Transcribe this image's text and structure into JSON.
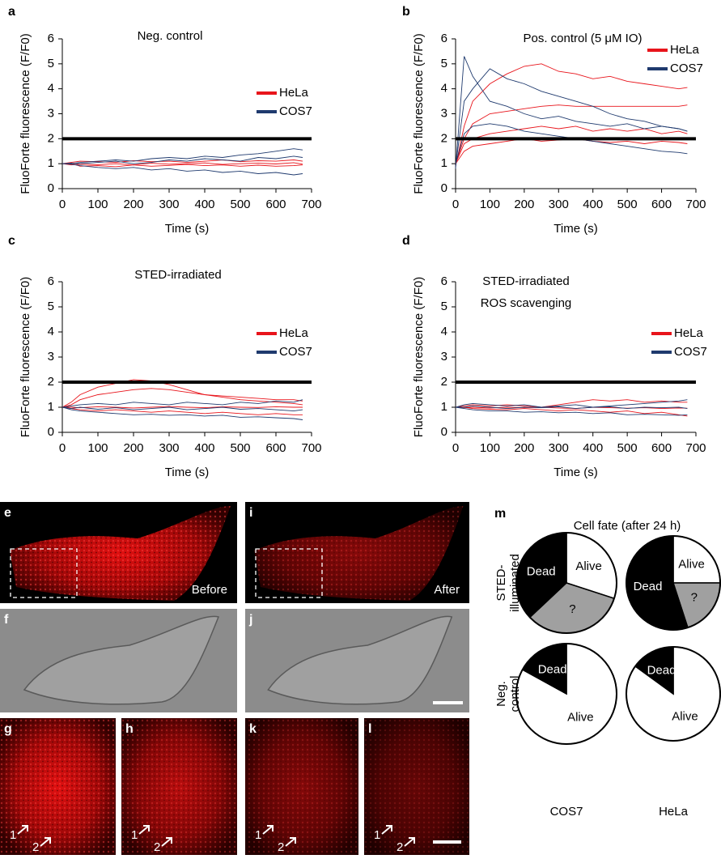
{
  "chart_data": [
    {
      "type": "line",
      "panel": "a",
      "title": "Neg. control",
      "xlabel": "Time (s)",
      "ylabel": "FluoForte fluorescence (F/F0)",
      "x": [
        0,
        25,
        50,
        100,
        150,
        200,
        250,
        300,
        350,
        400,
        450,
        500,
        550,
        600,
        650,
        675
      ],
      "xlim": [
        0,
        700
      ],
      "xticks": [
        0,
        100,
        200,
        300,
        400,
        500,
        600,
        700
      ],
      "ylim": [
        0,
        6
      ],
      "yticks": [
        0,
        1,
        2,
        3,
        4,
        5,
        6
      ],
      "threshold": 2,
      "series": [
        {
          "name": "HeLa",
          "color": "#e8141b",
          "traces": [
            [
              1,
              0.95,
              0.98,
              0.96,
              1.0,
              0.95,
              1.02,
              0.98,
              1.0,
              1.03,
              0.97,
              1.0,
              1.02,
              0.99,
              1.04,
              0.98
            ],
            [
              1,
              1.02,
              0.9,
              0.92,
              0.88,
              0.95,
              0.9,
              0.93,
              0.97,
              0.92,
              0.95,
              0.9,
              0.94,
              0.9,
              0.92,
              0.95
            ],
            [
              1,
              1.05,
              1.1,
              1.08,
              1.05,
              1.12,
              1.08,
              1.1,
              1.05,
              1.1,
              1.15,
              1.08,
              1.12,
              1.1,
              1.15,
              1.1
            ]
          ]
        },
        {
          "name": "COS7",
          "color": "#1f3a6e",
          "traces": [
            [
              1,
              1.0,
              1.05,
              1.1,
              1.15,
              1.1,
              1.2,
              1.25,
              1.2,
              1.3,
              1.25,
              1.35,
              1.4,
              1.5,
              1.6,
              1.55
            ],
            [
              1,
              0.98,
              0.92,
              0.85,
              0.8,
              0.85,
              0.75,
              0.8,
              0.7,
              0.75,
              0.65,
              0.7,
              0.6,
              0.65,
              0.55,
              0.6
            ],
            [
              1,
              1.02,
              1.0,
              1.05,
              1.1,
              1.0,
              1.05,
              1.15,
              1.1,
              1.2,
              1.15,
              1.1,
              1.25,
              1.2,
              1.3,
              1.25
            ]
          ]
        }
      ]
    },
    {
      "type": "line",
      "panel": "b",
      "title": "Pos. control (5 μM IO)",
      "xlabel": "Time (s)",
      "ylabel": "FluoForte fluorescence (F/F0)",
      "x": [
        0,
        25,
        50,
        100,
        150,
        200,
        250,
        300,
        350,
        400,
        450,
        500,
        550,
        600,
        650,
        675
      ],
      "xlim": [
        0,
        700
      ],
      "xticks": [
        0,
        100,
        200,
        300,
        400,
        500,
        600,
        700
      ],
      "ylim": [
        0,
        6
      ],
      "yticks": [
        0,
        1,
        2,
        3,
        4,
        5,
        6
      ],
      "threshold": 2,
      "series": [
        {
          "name": "HeLa",
          "color": "#e8141b",
          "traces": [
            [
              0.9,
              2.5,
              3.5,
              4.2,
              4.6,
              4.9,
              5.0,
              4.7,
              4.6,
              4.4,
              4.5,
              4.3,
              4.2,
              4.1,
              4.0,
              4.05
            ],
            [
              1.0,
              2.0,
              2.6,
              3.0,
              3.1,
              3.2,
              3.3,
              3.35,
              3.3,
              3.3,
              3.3,
              3.3,
              3.3,
              3.3,
              3.3,
              3.35
            ],
            [
              1.0,
              1.8,
              2.0,
              2.2,
              2.3,
              2.4,
              2.5,
              2.4,
              2.5,
              2.3,
              2.4,
              2.3,
              2.4,
              2.2,
              2.3,
              2.2
            ],
            [
              1.0,
              1.5,
              1.7,
              1.8,
              1.9,
              2.0,
              1.9,
              1.95,
              2.0,
              1.9,
              1.85,
              1.9,
              1.8,
              1.9,
              1.85,
              1.8
            ]
          ]
        },
        {
          "name": "COS7",
          "color": "#1f3a6e",
          "traces": [
            [
              0.8,
              5.3,
              4.5,
              3.5,
              3.3,
              3.0,
              2.8,
              2.9,
              2.7,
              2.6,
              2.5,
              2.6,
              2.4,
              2.5,
              2.4,
              2.3
            ],
            [
              0.9,
              3.5,
              4.0,
              4.8,
              4.4,
              4.2,
              3.9,
              3.7,
              3.5,
              3.3,
              3.0,
              2.8,
              2.7,
              2.5,
              2.4,
              2.3
            ],
            [
              1.0,
              2.2,
              2.5,
              2.6,
              2.5,
              2.3,
              2.2,
              2.1,
              2.0,
              1.9,
              1.8,
              1.7,
              1.6,
              1.5,
              1.45,
              1.4
            ]
          ]
        }
      ]
    },
    {
      "type": "line",
      "panel": "c",
      "title": "STED-irradiated",
      "xlabel": "Time (s)",
      "ylabel": "FluoForte fluorescence (F/F0)",
      "x": [
        0,
        25,
        50,
        100,
        150,
        200,
        250,
        300,
        350,
        400,
        450,
        500,
        550,
        600,
        650,
        675
      ],
      "xlim": [
        0,
        700
      ],
      "xticks": [
        0,
        100,
        200,
        300,
        400,
        500,
        600,
        700
      ],
      "ylim": [
        0,
        6
      ],
      "yticks": [
        0,
        1,
        2,
        3,
        4,
        5,
        6
      ],
      "threshold": 2,
      "series": [
        {
          "name": "HeLa",
          "color": "#e8141b",
          "traces": [
            [
              1,
              1.2,
              1.5,
              1.8,
              1.95,
              2.1,
              2.05,
              1.9,
              1.7,
              1.5,
              1.4,
              1.3,
              1.25,
              1.2,
              1.15,
              1.1
            ],
            [
              1,
              1.1,
              1.3,
              1.5,
              1.6,
              1.7,
              1.75,
              1.7,
              1.6,
              1.5,
              1.45,
              1.4,
              1.35,
              1.3,
              1.3,
              1.25
            ],
            [
              1,
              1.0,
              0.98,
              1.02,
              1.0,
              0.97,
              1.0,
              1.03,
              1.0,
              0.98,
              1.02,
              1.0,
              0.99,
              1.02,
              1.0,
              1.0
            ],
            [
              1,
              0.95,
              0.9,
              0.85,
              0.9,
              0.85,
              0.8,
              0.85,
              0.8,
              0.75,
              0.8,
              0.75,
              0.7,
              0.75,
              0.7,
              0.7
            ]
          ]
        },
        {
          "name": "COS7",
          "color": "#1f3a6e",
          "traces": [
            [
              1,
              0.9,
              0.85,
              0.8,
              0.75,
              0.7,
              0.72,
              0.68,
              0.7,
              0.65,
              0.68,
              0.6,
              0.62,
              0.58,
              0.55,
              0.5
            ],
            [
              1,
              1.05,
              1.1,
              1.15,
              1.1,
              1.2,
              1.15,
              1.1,
              1.2,
              1.15,
              1.1,
              1.2,
              1.15,
              1.25,
              1.2,
              1.3
            ],
            [
              1,
              0.95,
              1.0,
              0.92,
              0.98,
              0.9,
              0.95,
              1.0,
              0.9,
              0.95,
              1.0,
              0.92,
              0.95,
              0.9,
              0.85,
              0.9
            ]
          ]
        }
      ]
    },
    {
      "type": "line",
      "panel": "d",
      "title": "STED-irradiated",
      "subtitle": "ROS scavenging",
      "xlabel": "Time (s)",
      "ylabel": "FluoForte fluorescence (F/F0)",
      "x": [
        0,
        25,
        50,
        100,
        150,
        200,
        250,
        300,
        350,
        400,
        450,
        500,
        550,
        600,
        650,
        675
      ],
      "xlim": [
        0,
        700
      ],
      "xticks": [
        0,
        100,
        200,
        300,
        400,
        500,
        600,
        700
      ],
      "ylim": [
        0,
        6
      ],
      "yticks": [
        0,
        1,
        2,
        3,
        4,
        5,
        6
      ],
      "threshold": 2,
      "series": [
        {
          "name": "HeLa",
          "color": "#e8141b",
          "traces": [
            [
              1,
              1.0,
              0.95,
              0.92,
              0.9,
              0.95,
              0.9,
              0.85,
              0.9,
              0.85,
              0.8,
              0.85,
              0.75,
              0.8,
              0.7,
              0.65
            ],
            [
              1,
              1.05,
              1.1,
              1.05,
              1.1,
              1.05,
              1.0,
              1.1,
              1.2,
              1.3,
              1.25,
              1.3,
              1.2,
              1.25,
              1.2,
              1.2
            ],
            [
              1,
              0.98,
              1.0,
              0.97,
              1.0,
              0.98,
              1.0,
              0.97,
              0.95,
              1.0,
              0.98,
              0.96,
              0.98,
              0.95,
              0.97,
              0.96
            ]
          ]
        },
        {
          "name": "COS7",
          "color": "#1f3a6e",
          "traces": [
            [
              1,
              1.1,
              1.15,
              1.1,
              1.05,
              1.1,
              1.0,
              1.05,
              1.1,
              1.0,
              1.05,
              1.1,
              1.15,
              1.2,
              1.25,
              1.3
            ],
            [
              1,
              0.95,
              0.9,
              0.85,
              0.85,
              0.8,
              0.82,
              0.78,
              0.8,
              0.75,
              0.78,
              0.7,
              0.72,
              0.7,
              0.68,
              0.7
            ],
            [
              1,
              1.0,
              1.05,
              1.0,
              0.95,
              1.0,
              0.98,
              1.02,
              0.95,
              1.0,
              1.02,
              0.95,
              1.0,
              0.98,
              1.0,
              0.95
            ]
          ]
        }
      ]
    },
    {
      "type": "pie",
      "categories": [
        "Alive",
        "?",
        "Dead"
      ],
      "values": [
        30,
        33,
        37
      ],
      "colors": [
        "#ffffff",
        "#a0a0a0",
        "#000000"
      ]
    },
    {
      "type": "pie",
      "categories": [
        "Alive",
        "?",
        "Dead"
      ],
      "values": [
        25,
        20,
        55
      ],
      "colors": [
        "#ffffff",
        "#a0a0a0",
        "#000000"
      ]
    },
    {
      "type": "pie",
      "categories": [
        "Alive",
        "Dead"
      ],
      "values": [
        83,
        17
      ],
      "colors": [
        "#ffffff",
        "#000000"
      ]
    },
    {
      "type": "pie",
      "categories": [
        "Alive",
        "Dead"
      ],
      "values": [
        85,
        15
      ],
      "colors": [
        "#ffffff",
        "#000000"
      ]
    }
  ],
  "pie_panel": {
    "panel": "m",
    "title": "Cell fate (after 24 h)",
    "row_labels": [
      [
        "STED-",
        "illuminated"
      ],
      [
        "Neg.",
        "control"
      ]
    ],
    "column_labels": [
      "COS7",
      "HeLa"
    ]
  },
  "images": [
    {
      "panel": "e",
      "caption": "Before"
    },
    {
      "panel": "i",
      "caption": "After"
    },
    {
      "panel": "f"
    },
    {
      "panel": "j"
    },
    {
      "panel": "g"
    },
    {
      "panel": "h"
    },
    {
      "panel": "k"
    },
    {
      "panel": "l"
    }
  ],
  "arrow_labels": [
    "1",
    "2"
  ]
}
